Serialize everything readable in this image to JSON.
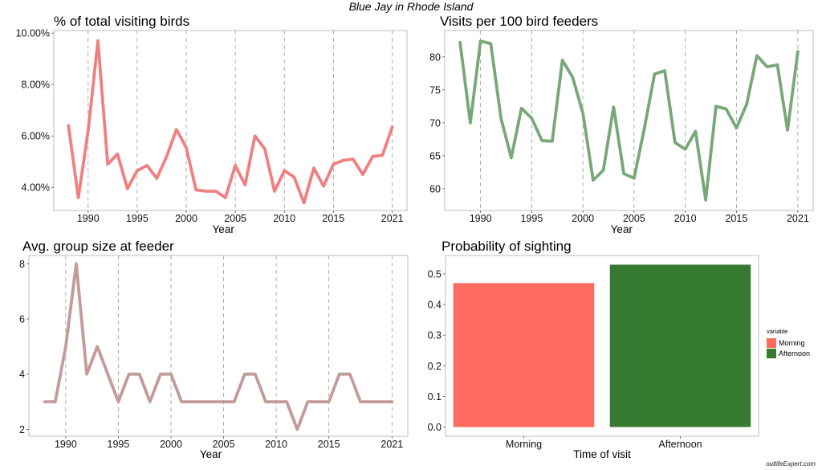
{
  "main_title": "Blue Jay in Rhode Island",
  "credit": "outlifeExpert.com",
  "chart_data": [
    {
      "type": "line",
      "title": "% of total visiting birds",
      "xlabel": "Year",
      "ylabel": "",
      "color": "#f08080",
      "xlim": [
        1986.5,
        2022.5
      ],
      "ylim": [
        3.1,
        10.1
      ],
      "xticks": [
        1990,
        1995,
        2000,
        2005,
        2010,
        2015,
        2021
      ],
      "yticks": [
        4,
        6,
        8,
        10
      ],
      "ytick_labels": [
        "4.00%",
        "6.00%",
        "8.00%",
        "10.00%"
      ],
      "vlines": [
        1990,
        1995,
        2000,
        2005,
        2010,
        2015,
        2021
      ],
      "x": [
        1988,
        1989,
        1990,
        1991,
        1992,
        1993,
        1994,
        1995,
        1996,
        1997,
        1998,
        1999,
        2000,
        2001,
        2002,
        2003,
        2004,
        2005,
        2006,
        2007,
        2008,
        2009,
        2010,
        2011,
        2012,
        2013,
        2014,
        2015,
        2016,
        2017,
        2018,
        2019,
        2020,
        2021
      ],
      "y": [
        6.4,
        3.6,
        6.2,
        9.7,
        4.9,
        5.3,
        3.95,
        4.65,
        4.85,
        4.35,
        5.2,
        6.25,
        5.55,
        3.9,
        3.85,
        3.85,
        3.6,
        4.85,
        4.1,
        6.0,
        5.5,
        3.85,
        4.65,
        4.4,
        3.4,
        4.75,
        4.05,
        4.9,
        5.05,
        5.1,
        4.5,
        5.2,
        5.25,
        6.35
      ]
    },
    {
      "type": "line",
      "title": "Visits per 100 bird feeders",
      "xlabel": "Year",
      "ylabel": "",
      "color": "#78a878",
      "xlim": [
        1986.5,
        2022.5
      ],
      "ylim": [
        56.7,
        84
      ],
      "xticks": [
        1990,
        1995,
        2000,
        2005,
        2010,
        2015,
        2021
      ],
      "yticks": [
        60,
        65,
        70,
        75,
        80
      ],
      "ytick_labels": [
        "60",
        "65",
        "70",
        "75",
        "80"
      ],
      "vlines": [
        1990,
        1995,
        2000,
        2005,
        2010,
        2015,
        2021
      ],
      "x": [
        1988,
        1989,
        1990,
        1991,
        1992,
        1993,
        1994,
        1995,
        1996,
        1997,
        1998,
        1999,
        2000,
        2001,
        2002,
        2003,
        2004,
        2005,
        2006,
        2007,
        2008,
        2009,
        2010,
        2011,
        2012,
        2013,
        2014,
        2015,
        2016,
        2017,
        2018,
        2019,
        2020,
        2021
      ],
      "y": [
        82.2,
        70.0,
        82.4,
        82.0,
        70.7,
        64.7,
        72.2,
        70.7,
        67.3,
        67.2,
        79.5,
        76.9,
        71.5,
        61.3,
        62.8,
        72.4,
        62.3,
        61.6,
        69.1,
        77.4,
        77.9,
        67.0,
        66.0,
        68.7,
        58.3,
        72.5,
        72.1,
        69.2,
        72.8,
        80.2,
        78.5,
        78.8,
        68.9,
        80.8
      ]
    },
    {
      "type": "line",
      "title": "Avg. group size at feeder",
      "xlabel": "Year",
      "ylabel": "",
      "color": "#c49a9a",
      "xlim": [
        1986.5,
        2022.5
      ],
      "ylim": [
        1.75,
        8.3
      ],
      "xticks": [
        1990,
        1995,
        2000,
        2005,
        2010,
        2015,
        2021
      ],
      "yticks": [
        2,
        4,
        6,
        8
      ],
      "ytick_labels": [
        "2",
        "4",
        "6",
        "8"
      ],
      "vlines": [
        1990,
        1995,
        2000,
        2005,
        2010,
        2015,
        2021
      ],
      "x": [
        1988,
        1989,
        1990,
        1991,
        1992,
        1993,
        1994,
        1995,
        1996,
        1997,
        1998,
        1999,
        2000,
        2001,
        2002,
        2003,
        2004,
        2005,
        2006,
        2007,
        2008,
        2009,
        2010,
        2011,
        2012,
        2013,
        2014,
        2015,
        2016,
        2017,
        2018,
        2019,
        2020,
        2021
      ],
      "y": [
        3,
        3,
        5,
        8,
        4,
        5,
        4,
        3,
        4,
        4,
        3,
        4,
        4,
        3,
        3,
        3,
        3,
        3,
        3,
        4,
        4,
        3,
        3,
        3,
        2,
        3,
        3,
        3,
        4,
        4,
        3,
        3,
        3,
        3
      ]
    },
    {
      "type": "bar",
      "title": "Probability of sighting",
      "xlabel": "Time of visit",
      "ylabel": "",
      "categories": [
        "Morning",
        "Afternoon"
      ],
      "values": [
        0.47,
        0.53
      ],
      "colors": [
        "#ff6b5e",
        "#367a32"
      ],
      "ylim": [
        -0.03,
        0.56
      ],
      "yticks": [
        0.0,
        0.1,
        0.2,
        0.3,
        0.4,
        0.5
      ],
      "ytick_labels": [
        "0.0",
        "0.1",
        "0.2",
        "0.3",
        "0.4",
        "0.5"
      ],
      "legend": {
        "title": "variable",
        "position": "right",
        "items": [
          "Morning",
          "Afternoon"
        ]
      }
    }
  ]
}
